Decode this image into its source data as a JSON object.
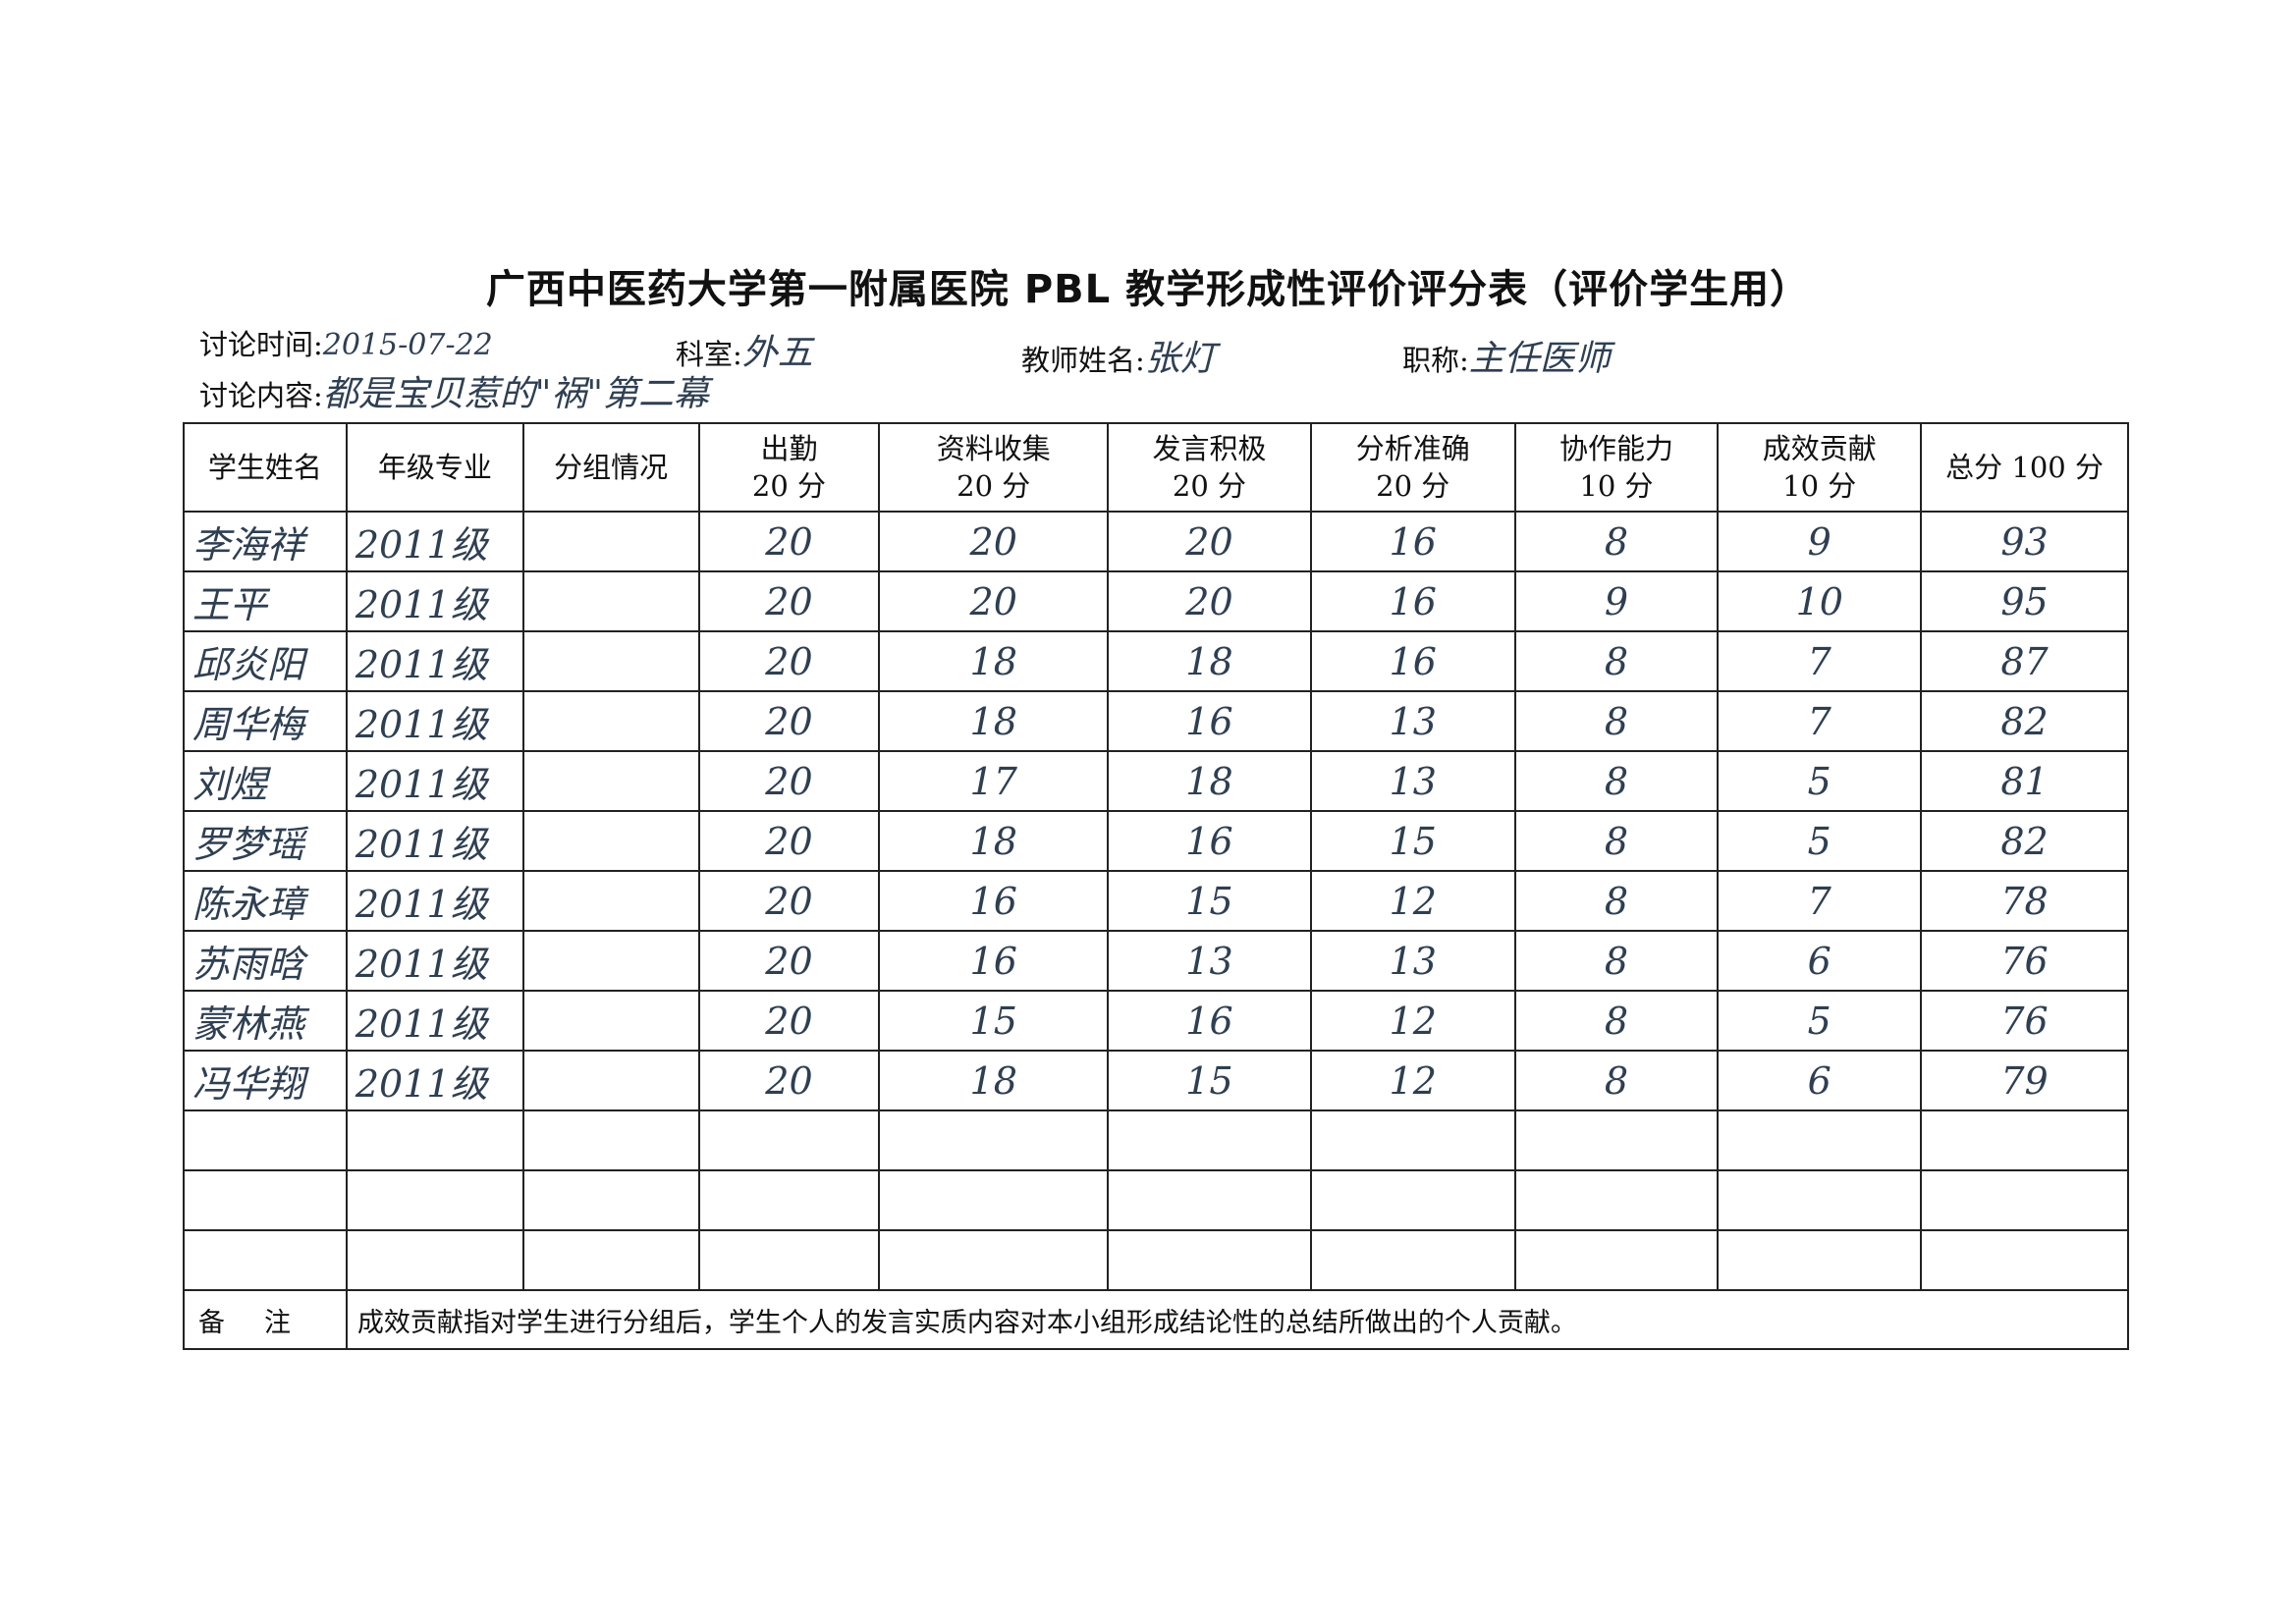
{
  "title": "广西中医药大学第一附属医院 PBL 教学形成性评价评分表（评价学生用）",
  "meta": {
    "time_label": "讨论时间:",
    "time_value": "2015-07-22",
    "dept_label": "科室:",
    "dept_value": "外五",
    "teacher_label": "教师姓名:",
    "teacher_value": "张灯",
    "rank_label": "职称:",
    "rank_value": "主任医师",
    "content_label": "讨论内容:",
    "content_value": "都是宝贝惹的\"祸\"第二幕"
  },
  "table": {
    "headers": [
      "学生姓名",
      "年级专业",
      "分组情况",
      "出勤\n20 分",
      "资料收集\n20 分",
      "发言积极\n20 分",
      "分析准确\n20 分",
      "协作能力\n10 分",
      "成效贡献\n10 分",
      "总分 100 分"
    ],
    "rows": [
      {
        "name": "李海祥",
        "grade": "2011级",
        "group": "",
        "attendance": "20",
        "materials": "20",
        "speaking": "20",
        "analysis": "16",
        "cooperation": "8",
        "contribution": "9",
        "total": "93"
      },
      {
        "name": "王平",
        "grade": "2011级",
        "group": "",
        "attendance": "20",
        "materials": "20",
        "speaking": "20",
        "analysis": "16",
        "cooperation": "9",
        "contribution": "10",
        "total": "95"
      },
      {
        "name": "邱炎阳",
        "grade": "2011级",
        "group": "",
        "attendance": "20",
        "materials": "18",
        "speaking": "18",
        "analysis": "16",
        "cooperation": "8",
        "contribution": "7",
        "total": "87"
      },
      {
        "name": "周华梅",
        "grade": "2011级",
        "group": "",
        "attendance": "20",
        "materials": "18",
        "speaking": "16",
        "analysis": "13",
        "cooperation": "8",
        "contribution": "7",
        "total": "82"
      },
      {
        "name": "刘煜",
        "grade": "2011级",
        "group": "",
        "attendance": "20",
        "materials": "17",
        "speaking": "18",
        "analysis": "13",
        "cooperation": "8",
        "contribution": "5",
        "total": "81"
      },
      {
        "name": "罗梦瑶",
        "grade": "2011级",
        "group": "",
        "attendance": "20",
        "materials": "18",
        "speaking": "16",
        "analysis": "15",
        "cooperation": "8",
        "contribution": "5",
        "total": "82"
      },
      {
        "name": "陈永璋",
        "grade": "2011级",
        "group": "",
        "attendance": "20",
        "materials": "16",
        "speaking": "15",
        "analysis": "12",
        "cooperation": "8",
        "contribution": "7",
        "total": "78"
      },
      {
        "name": "苏雨晗",
        "grade": "2011级",
        "group": "",
        "attendance": "20",
        "materials": "16",
        "speaking": "13",
        "analysis": "13",
        "cooperation": "8",
        "contribution": "6",
        "total": "76"
      },
      {
        "name": "蒙林燕",
        "grade": "2011级",
        "group": "",
        "attendance": "20",
        "materials": "15",
        "speaking": "16",
        "analysis": "12",
        "cooperation": "8",
        "contribution": "5",
        "total": "76"
      },
      {
        "name": "冯华翔",
        "grade": "2011级",
        "group": "",
        "attendance": "20",
        "materials": "18",
        "speaking": "15",
        "analysis": "12",
        "cooperation": "8",
        "contribution": "6",
        "total": "79"
      }
    ],
    "empty_rows": 3,
    "note_label": "备注",
    "note_text": "成效贡献指对学生进行分组后，学生个人的发言实质内容对本小组形成结论性的总结所做出的个人贡献。"
  }
}
